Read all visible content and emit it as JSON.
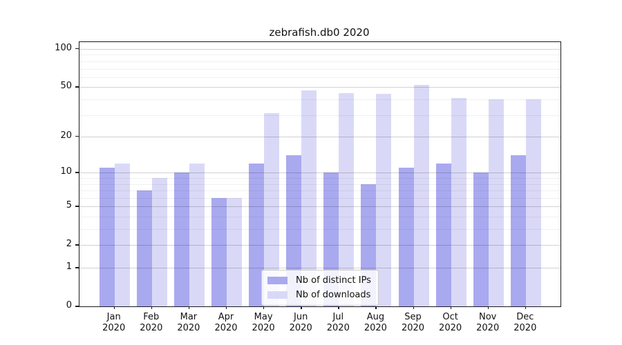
{
  "figure": {
    "title": "zebrafish.db0 2020"
  },
  "chart_data": {
    "type": "bar",
    "title": "zebrafish.db0 2020",
    "yscale": "log1p",
    "categories": [
      "Jan",
      "Feb",
      "Mar",
      "Apr",
      "May",
      "Jun",
      "Jul",
      "Aug",
      "Sep",
      "Oct",
      "Nov",
      "Dec"
    ],
    "year_label": "2020",
    "series": [
      {
        "name": "Nb of distinct IPs",
        "color": "#a9a9f0",
        "values": [
          11,
          7,
          10,
          6,
          12,
          14,
          10,
          8,
          11,
          12,
          10,
          14
        ]
      },
      {
        "name": "Nb of downloads",
        "color": "#d9d9f7",
        "values": [
          12,
          9,
          12,
          6,
          31,
          47,
          45,
          44,
          52,
          41,
          40,
          40
        ]
      }
    ],
    "yticks": [
      0,
      1,
      2,
      5,
      10,
      20,
      50,
      100
    ],
    "minor_gridlines": [
      3,
      4,
      6,
      7,
      8,
      9,
      30,
      40,
      60,
      70,
      80,
      90
    ],
    "ylim": [
      0,
      113
    ],
    "xlabel": "",
    "ylabel": "",
    "grid": true,
    "legend_position": "lower-center-inside"
  }
}
